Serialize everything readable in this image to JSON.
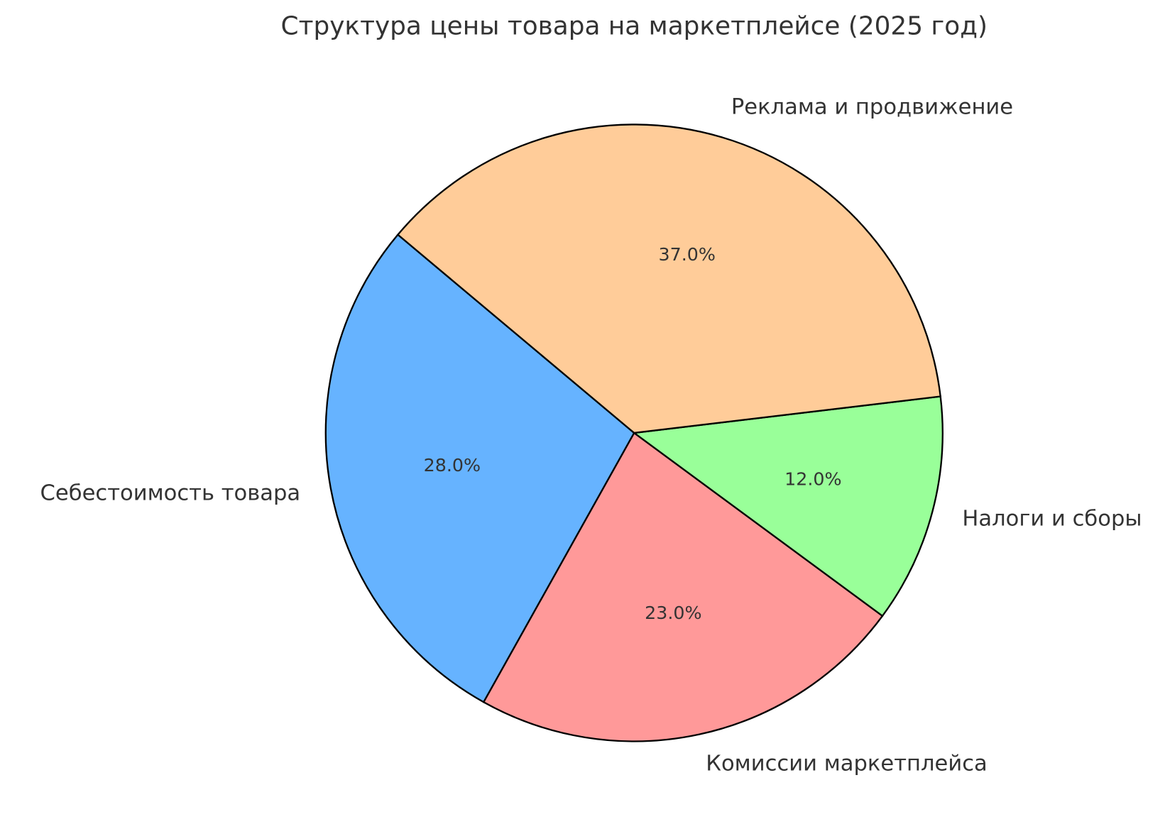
{
  "chart_data": {
    "type": "pie",
    "title": "Структура цены товара на маркетплейсе (2025 год)",
    "categories": [
      "Себестоимость товара",
      "Комиссии маркетплейса",
      "Налоги и сборы",
      "Реклама и продвижение"
    ],
    "values": [
      28,
      23,
      12,
      37
    ],
    "value_labels": [
      "28.0%",
      "23.0%",
      "12.0%",
      "37.0%"
    ],
    "colors": [
      "#66b3ff",
      "#ff9999",
      "#99ff99",
      "#ffcc99"
    ]
  }
}
